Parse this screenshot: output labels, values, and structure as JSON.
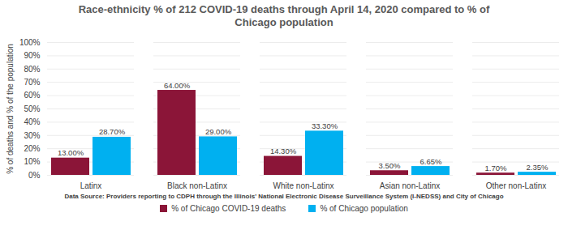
{
  "chart_data": {
    "type": "bar",
    "title": "Race-ethnicity % of 212 COVID-19 deaths through April 14, 2020 compared to % of Chicago population",
    "ylabel": "% of deaths and % of the population",
    "annotation": "Data Source: Providers reporting to CDPH through the Illinois' National Electronic Disease Surveillance System (I-NEDSS) and City of Chicago",
    "categories": [
      "Latinx",
      "Black non-Latinx",
      "White non-Latinx",
      "Asian non-Latinx",
      "Other non-Latinx"
    ],
    "series": [
      {
        "name": "% of Chicago COVID-19 deaths",
        "color": "#8b1538",
        "values": [
          13.0,
          64.0,
          14.3,
          3.5,
          1.7
        ],
        "value_labels": [
          "13.00%",
          "64.00%",
          "14.30%",
          "3.50%",
          "1.70%"
        ]
      },
      {
        "name": "% of Chicago population",
        "color": "#00b0f0",
        "values": [
          28.7,
          29.0,
          33.3,
          6.65,
          2.35
        ],
        "value_labels": [
          "28.70%",
          "29.00%",
          "33.30%",
          "6.65%",
          "2.35%"
        ]
      }
    ],
    "ylim": [
      0,
      100
    ],
    "yticks": [
      {
        "value": 0,
        "label": "0%"
      },
      {
        "value": 10,
        "label": "10%"
      },
      {
        "value": 20,
        "label": "20%"
      },
      {
        "value": 30,
        "label": "30%"
      },
      {
        "value": 40,
        "label": "40%"
      },
      {
        "value": 50,
        "label": "50%"
      },
      {
        "value": 60,
        "label": "60%"
      },
      {
        "value": 70,
        "label": "70%"
      },
      {
        "value": 80,
        "label": "80%"
      },
      {
        "value": 90,
        "label": "90%"
      },
      {
        "value": 100,
        "label": "100%"
      }
    ],
    "grid": true,
    "data_labels": true,
    "legend": "bottom"
  }
}
